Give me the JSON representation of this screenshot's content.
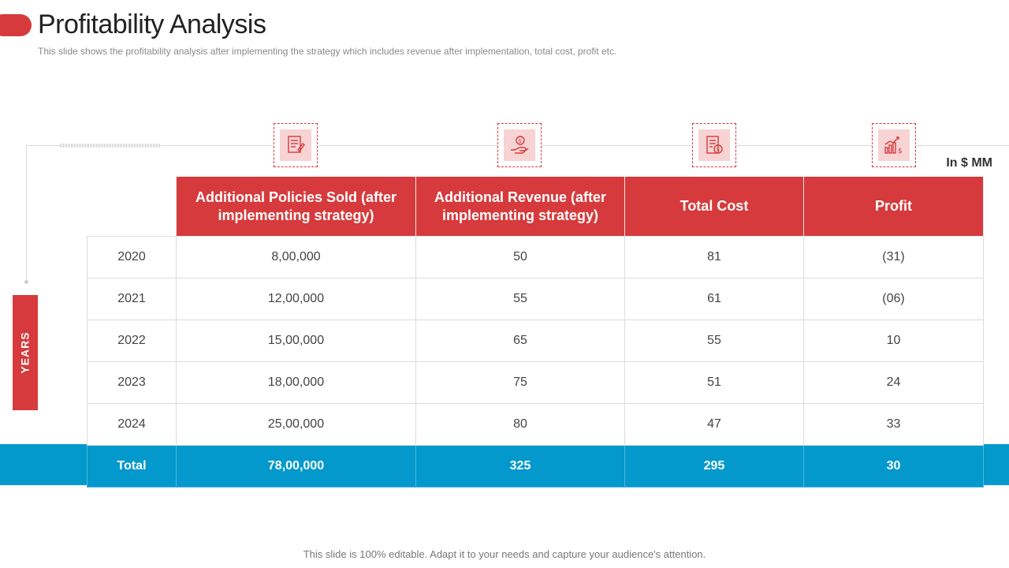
{
  "title": "Profitability Analysis",
  "subtitle": "This slide shows the profitability analysis after implementing the strategy which includes revenue  after implementation,  total cost, profit etc.",
  "units": "In $ MM",
  "side_label": "YEARS",
  "columns": [
    {
      "header": "Additional Policies Sold (after implementing strategy)",
      "icon": "policy-document-icon"
    },
    {
      "header": "Additional Revenue (after implementing strategy)",
      "icon": "hand-dollar-icon"
    },
    {
      "header": "Total Cost",
      "icon": "invoice-dollar-icon"
    },
    {
      "header": "Profit",
      "icon": "growth-chart-dollar-icon"
    }
  ],
  "rows": [
    {
      "year": "2020",
      "policies": "8,00,000",
      "revenue": "50",
      "cost": "81",
      "profit": "(31)"
    },
    {
      "year": "2021",
      "policies": "12,00,000",
      "revenue": "55",
      "cost": "61",
      "profit": "(06)"
    },
    {
      "year": "2022",
      "policies": "15,00,000",
      "revenue": "65",
      "cost": "55",
      "profit": "10"
    },
    {
      "year": "2023",
      "policies": "18,00,000",
      "revenue": "75",
      "cost": "51",
      "profit": "24"
    },
    {
      "year": "2024",
      "policies": "25,00,000",
      "revenue": "80",
      "cost": "47",
      "profit": "33"
    }
  ],
  "total": {
    "label": "Total",
    "policies": "78,00,000",
    "revenue": "325",
    "cost": "295",
    "profit": "30"
  },
  "footer": "This slide is 100% editable. Adapt it to your needs and capture your audience's attention.",
  "colors": {
    "accent_red": "#d63a3c",
    "total_blue": "#0399cd",
    "icon_bg": "#f7d3d3"
  }
}
